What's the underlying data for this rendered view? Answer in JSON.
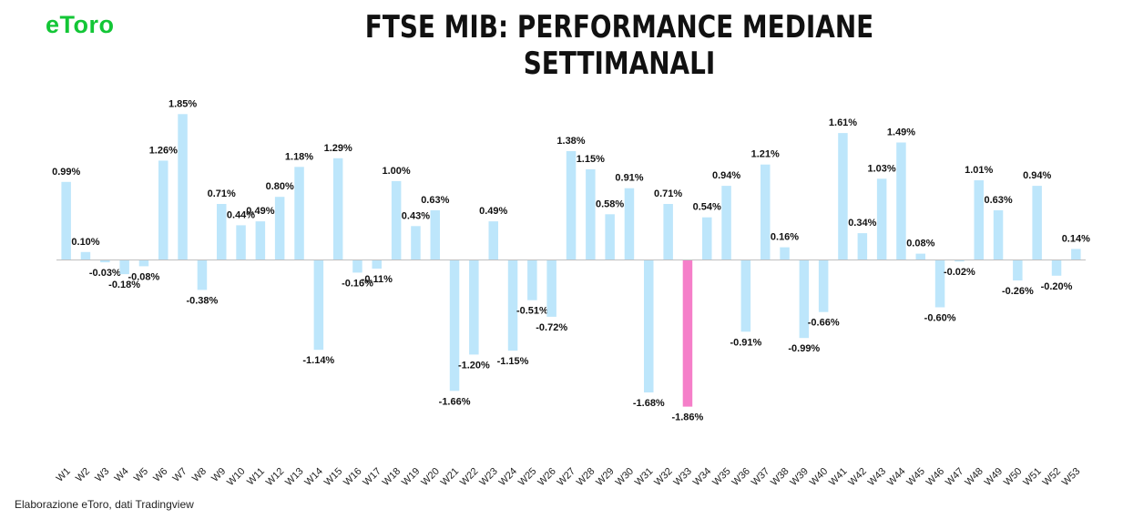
{
  "header": {
    "logo_text": "eToro",
    "title": "FTSE MIB: PERFORMANCE MEDIANE SETTIMANALI"
  },
  "footer": {
    "source_note": "Elaborazione eToro, dati Tradingview"
  },
  "colors": {
    "bar": "#bde6fb",
    "highlight": "#f57fc9",
    "axis": "#bfbfbf",
    "logo": "#13c636"
  },
  "chart_data": {
    "type": "bar",
    "title": "FTSE MIB: PERFORMANCE MEDIANE SETTIMANALI",
    "xlabel": "",
    "ylabel": "",
    "ylim": [
      -2.0,
      2.0
    ],
    "grid": false,
    "highlight_category": "W33",
    "categories": [
      "W1",
      "W2",
      "W3",
      "W4",
      "W5",
      "W6",
      "W7",
      "W8",
      "W9",
      "W10",
      "W11",
      "W12",
      "W13",
      "W14",
      "W15",
      "W16",
      "W17",
      "W18",
      "W19",
      "W20",
      "W21",
      "W22",
      "W23",
      "W24",
      "W25",
      "W26",
      "W27",
      "W28",
      "W29",
      "W30",
      "W31",
      "W32",
      "W33",
      "W34",
      "W35",
      "W36",
      "W37",
      "W38",
      "W39",
      "W40",
      "W41",
      "W42",
      "W43",
      "W44",
      "W45",
      "W46",
      "W47",
      "W48",
      "W49",
      "W50",
      "W51",
      "W52",
      "W53"
    ],
    "values": [
      0.99,
      0.1,
      -0.03,
      -0.18,
      -0.08,
      1.26,
      1.85,
      -0.38,
      0.71,
      0.44,
      0.49,
      0.8,
      1.18,
      -1.14,
      1.29,
      -0.16,
      -0.11,
      1.0,
      0.43,
      0.63,
      -1.66,
      -1.2,
      0.49,
      -1.15,
      -0.51,
      -0.72,
      1.38,
      1.15,
      0.58,
      0.91,
      -1.68,
      0.71,
      -1.86,
      0.54,
      0.94,
      -0.91,
      1.21,
      0.16,
      -0.99,
      -0.66,
      1.61,
      0.34,
      1.03,
      1.49,
      0.08,
      -0.6,
      -0.02,
      1.01,
      0.63,
      -0.26,
      0.94,
      -0.2,
      0.14
    ],
    "labels": [
      "0.99%",
      "0.10%",
      "-0.03%",
      "-0.18%",
      "-0.08%",
      "1.26%",
      "1.85%",
      "-0.38%",
      "0.71%",
      "0.44%",
      "0.49%",
      "0.80%",
      "1.18%",
      "-1.14%",
      "1.29%",
      "-0.16%",
      "-0.11%",
      "1.00%",
      "0.43%",
      "0.63%",
      "-1.66%",
      "-1.20%",
      "0.49%",
      "-1.15%",
      "-0.51%",
      "-0.72%",
      "1.38%",
      "1.15%",
      "0.58%",
      "0.91%",
      "-1.68%",
      "0.71%",
      "-1.86%",
      "0.54%",
      "0.94%",
      "-0.91%",
      "1.21%",
      "0.16%",
      "-0.99%",
      "-0.66%",
      "1.61%",
      "0.34%",
      "1.03%",
      "1.49%",
      "0.08%",
      "-0.60%",
      "-0.02%",
      "1.01%",
      "0.63%",
      "-0.26%",
      "0.94%",
      "-0.20%",
      "0.14%"
    ]
  }
}
